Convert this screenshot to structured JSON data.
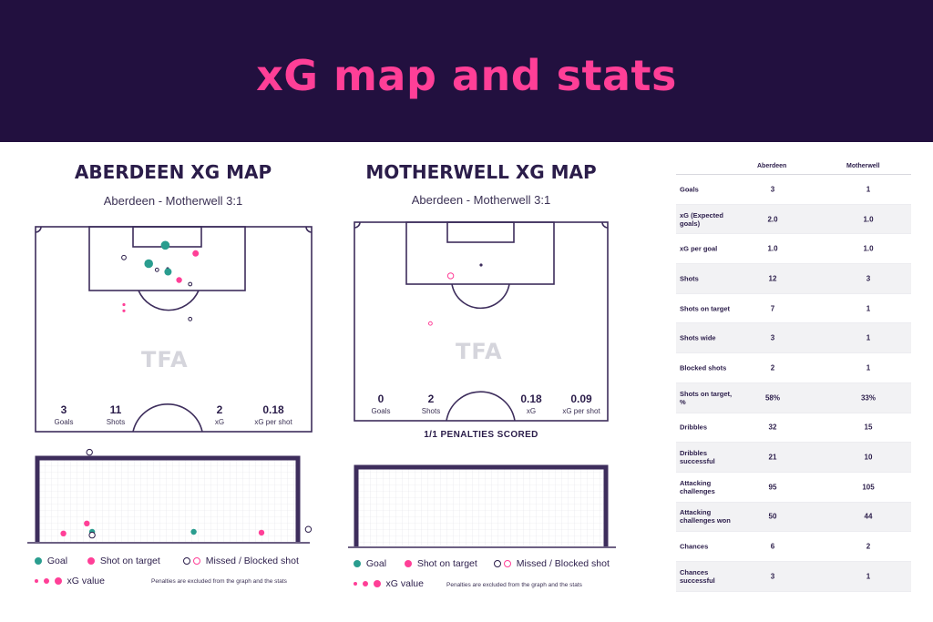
{
  "header": {
    "title": "xG map and stats"
  },
  "brand": {
    "watermark": "TFA"
  },
  "colors": {
    "banner": "#22103f",
    "accent": "#ff3f97",
    "goal": "#2a9d8f",
    "on_target": "#ff3f97",
    "missed": "#2b1d4a",
    "pitch_line": "#3d2d5c"
  },
  "left": {
    "title": "ABERDEEN XG MAP",
    "subtitle": "Aberdeen - Motherwell 3:1",
    "stats": [
      {
        "value": "3",
        "label": "Goals"
      },
      {
        "value": "11",
        "label": "Shots"
      },
      {
        "value": "2",
        "label": "xG"
      },
      {
        "value": "0.18",
        "label": "xG per shot"
      }
    ]
  },
  "right": {
    "title": "MOTHERWELL XG MAP",
    "subtitle": "Aberdeen - Motherwell 3:1",
    "stats": [
      {
        "value": "0",
        "label": "Goals"
      },
      {
        "value": "2",
        "label": "Shots"
      },
      {
        "value": "0.18",
        "label": "xG"
      },
      {
        "value": "0.09",
        "label": "xG per shot"
      }
    ],
    "penalties": "1/1 PENALTIES SCORED"
  },
  "legend": {
    "goal": "Goal",
    "on_target": "Shot on target",
    "missed": "Missed / Blocked shot",
    "xg_value": "xG value",
    "note": "Penalties are excluded from the graph and the stats"
  },
  "chart_data": [
    {
      "type": "scatter",
      "name": "Aberdeen shot map",
      "shots": [
        {
          "x": 0.47,
          "y": 0.09,
          "outcome": "goal",
          "size": 3
        },
        {
          "x": 0.41,
          "y": 0.18,
          "outcome": "goal",
          "size": 3
        },
        {
          "x": 0.48,
          "y": 0.22,
          "outcome": "goal",
          "size": 2.5
        },
        {
          "x": 0.58,
          "y": 0.13,
          "outcome": "on_target",
          "size": 2.2
        },
        {
          "x": 0.52,
          "y": 0.26,
          "outcome": "on_target",
          "size": 2
        },
        {
          "x": 0.32,
          "y": 0.38,
          "outcome": "on_target",
          "size": 1
        },
        {
          "x": 0.32,
          "y": 0.41,
          "outcome": "on_target",
          "size": 1
        },
        {
          "x": 0.32,
          "y": 0.15,
          "outcome": "missed",
          "size": 1.5
        },
        {
          "x": 0.44,
          "y": 0.21,
          "outcome": "missed",
          "size": 1.2
        },
        {
          "x": 0.56,
          "y": 0.28,
          "outcome": "missed",
          "size": 1.2
        },
        {
          "x": 0.56,
          "y": 0.45,
          "outcome": "missed",
          "size": 1.2
        }
      ]
    },
    {
      "type": "scatter",
      "name": "Motherwell shot map",
      "shots": [
        {
          "x": 0.38,
          "y": 0.27,
          "outcome": "missed",
          "size": 2
        },
        {
          "x": 0.3,
          "y": 0.51,
          "outcome": "missed",
          "size": 1.2
        }
      ]
    },
    {
      "type": "scatter",
      "name": "Aberdeen goal map",
      "shots": [
        {
          "x": 0.19,
          "y": 0.78,
          "outcome": "on_target"
        },
        {
          "x": 0.1,
          "y": 0.9,
          "outcome": "on_target"
        },
        {
          "x": 0.21,
          "y": 0.88,
          "outcome": "goal"
        },
        {
          "x": 0.21,
          "y": 0.92,
          "outcome": "missed"
        },
        {
          "x": 0.6,
          "y": 0.88,
          "outcome": "goal"
        },
        {
          "x": 0.86,
          "y": 0.89,
          "outcome": "on_target"
        },
        {
          "x": 0.2,
          "y": -0.07,
          "outcome": "missed"
        },
        {
          "x": 1.04,
          "y": 0.85,
          "outcome": "missed"
        }
      ]
    },
    {
      "type": "table",
      "title": "",
      "columns": [
        "",
        "Aberdeen",
        "Motherwell"
      ],
      "rows": [
        {
          "label": "Goals",
          "aberdeen": "3",
          "motherwell": "1"
        },
        {
          "label": "xG (Expected goals)",
          "aberdeen": "2.0",
          "motherwell": "1.0"
        },
        {
          "label": "xG per goal",
          "aberdeen": "1.0",
          "motherwell": "1.0"
        },
        {
          "label": "Shots",
          "aberdeen": "12",
          "motherwell": "3"
        },
        {
          "label": "Shots on target",
          "aberdeen": "7",
          "motherwell": "1"
        },
        {
          "label": "Shots wide",
          "aberdeen": "3",
          "motherwell": "1"
        },
        {
          "label": "Blocked shots",
          "aberdeen": "2",
          "motherwell": "1"
        },
        {
          "label": "Shots on target, %",
          "aberdeen": "58%",
          "motherwell": "33%"
        },
        {
          "label": "Dribbles",
          "aberdeen": "32",
          "motherwell": "15"
        },
        {
          "label": "Dribbles successful",
          "aberdeen": "21",
          "motherwell": "10"
        },
        {
          "label": "Attacking challenges",
          "aberdeen": "95",
          "motherwell": "105"
        },
        {
          "label": "Attacking challenges won",
          "aberdeen": "50",
          "motherwell": "44"
        },
        {
          "label": "Chances",
          "aberdeen": "6",
          "motherwell": "2"
        },
        {
          "label": "Chances successful",
          "aberdeen": "3",
          "motherwell": "1"
        }
      ]
    }
  ]
}
